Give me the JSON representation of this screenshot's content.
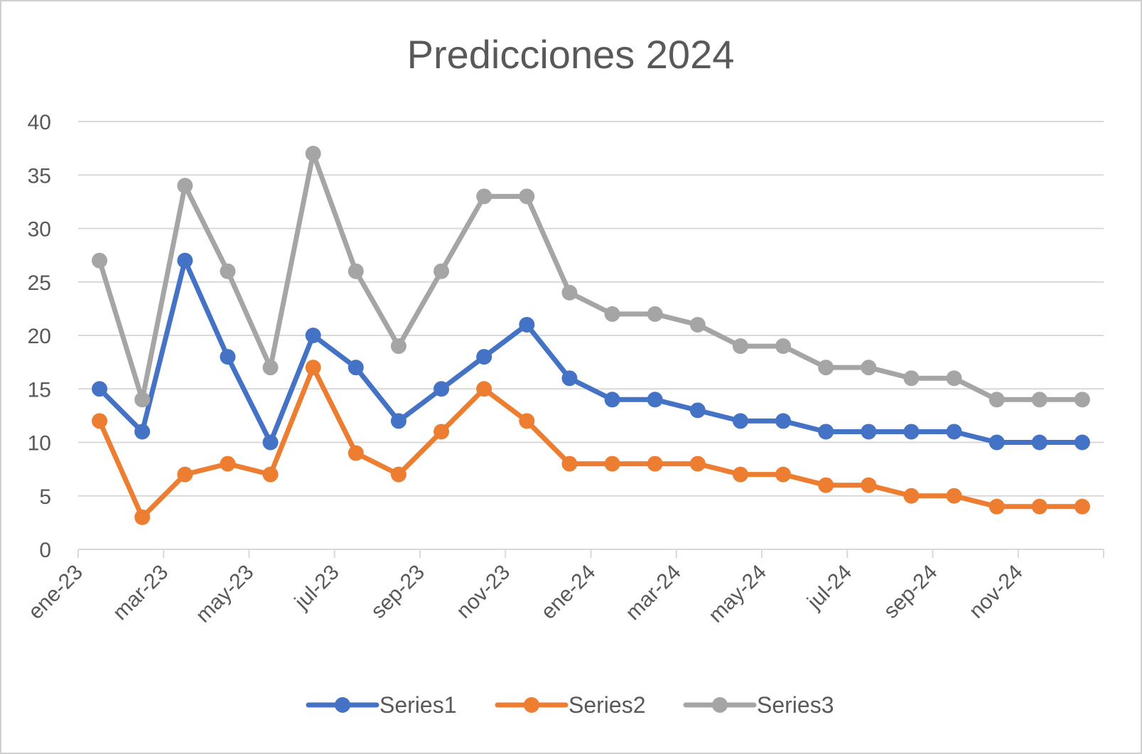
{
  "chart_data": {
    "type": "line",
    "title": "Predicciones 2024",
    "xlabel": "",
    "ylabel": "",
    "ylim": [
      0,
      40
    ],
    "yticks": [
      0,
      5,
      10,
      15,
      20,
      25,
      30,
      35,
      40
    ],
    "grid": true,
    "legend": "bottom",
    "x": [
      "ene-23",
      "feb-23",
      "mar-23",
      "abr-23",
      "may-23",
      "jun-23",
      "jul-23",
      "ago-23",
      "sep-23",
      "oct-23",
      "nov-23",
      "dic-23",
      "ene-24",
      "feb-24",
      "mar-24",
      "abr-24",
      "may-24",
      "jun-24",
      "jul-24",
      "ago-24",
      "sep-24",
      "oct-24",
      "nov-24",
      "dic-24"
    ],
    "tick_labels": [
      "ene-23",
      "mar-23",
      "may-23",
      "jul-23",
      "sep-23",
      "nov-23",
      "ene-24",
      "mar-24",
      "may-24",
      "jul-24",
      "sep-24",
      "nov-24"
    ],
    "series": [
      {
        "name": "Series1",
        "color": "#4472c4",
        "values": [
          15,
          11,
          27,
          18,
          10,
          20,
          17,
          12,
          15,
          18,
          21,
          16,
          14,
          14,
          13,
          12,
          12,
          11,
          11,
          11,
          11,
          10,
          10,
          10
        ]
      },
      {
        "name": "Series2",
        "color": "#ed7d31",
        "values": [
          12,
          3,
          7,
          8,
          7,
          17,
          9,
          7,
          11,
          15,
          12,
          8,
          8,
          8,
          8,
          7,
          7,
          6,
          6,
          5,
          5,
          4,
          4,
          4
        ]
      },
      {
        "name": "Series3",
        "color": "#a5a5a5",
        "values": [
          27,
          14,
          34,
          26,
          17,
          37,
          26,
          19,
          26,
          33,
          33,
          24,
          22,
          22,
          21,
          19,
          19,
          17,
          17,
          16,
          16,
          14,
          14,
          14
        ]
      }
    ]
  }
}
